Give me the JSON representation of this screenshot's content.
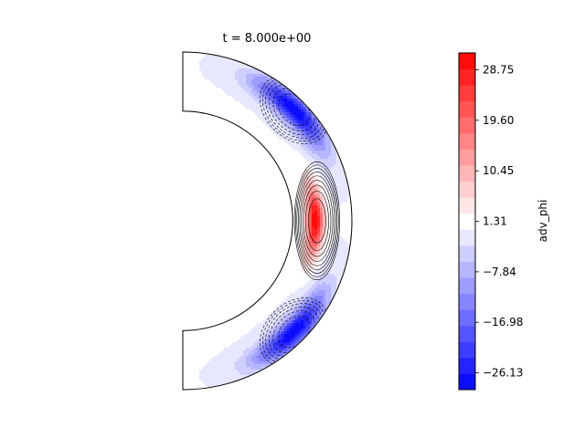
{
  "chart_data": {
    "type": "heatmap",
    "title": "t = 8.000e+00",
    "colorbar": {
      "label": "adv_phi",
      "range": [
        -29.18,
        31.8
      ],
      "levels": 21,
      "colors": {
        "negative": "#0000ff",
        "zero": "#ffffff",
        "positive": "#ff0000"
      },
      "ticks": [
        {
          "value": 28.75,
          "label": "28.75"
        },
        {
          "value": 19.6,
          "label": "19.60"
        },
        {
          "value": 10.45,
          "label": "10.45"
        },
        {
          "value": 1.31,
          "label": "1.31"
        },
        {
          "value": -7.84,
          "label": "−7.84"
        },
        {
          "value": -16.98,
          "label": "−16.98"
        },
        {
          "value": -26.13,
          "label": "−26.13"
        }
      ]
    },
    "field": {
      "geometry": "meridional half-annulus (spherical shell)",
      "inner_radius_ratio": 0.65,
      "features": [
        {
          "name": "equatorial positive lobe",
          "colatitude_deg": 90,
          "peak": 31.8
        },
        {
          "name": "northern negative lobe",
          "colatitude_deg": 45,
          "peak": -29.2
        },
        {
          "name": "southern negative lobe",
          "colatitude_deg": 135,
          "peak": -29.2
        }
      ]
    }
  }
}
